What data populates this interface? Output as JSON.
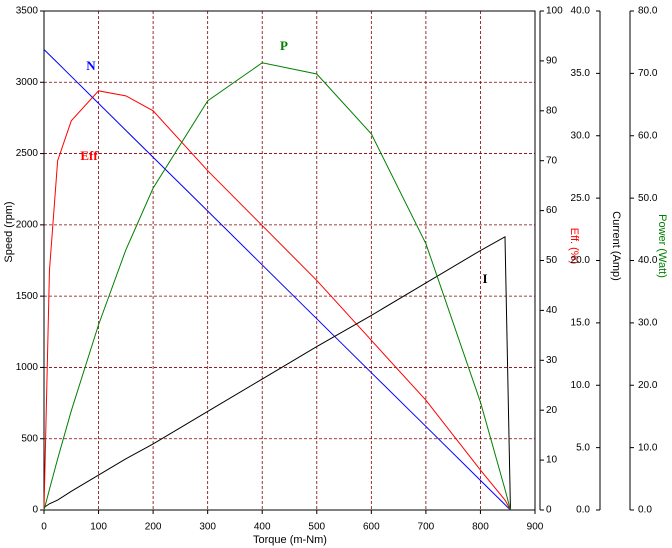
{
  "chart_data": {
    "type": "line",
    "xlabel": "Torque (m-Nm)",
    "ylabel": "Speed (rpm)",
    "y2label": "Eff. (%)",
    "y3label": "Current (Amp)",
    "y4label": "Power (Watt)",
    "x": [
      0,
      10,
      25,
      50,
      100,
      150,
      200,
      300,
      400,
      500,
      600,
      700,
      800,
      845,
      855
    ],
    "xlim": [
      0,
      900
    ],
    "xticks": [
      0,
      100,
      200,
      300,
      400,
      500,
      600,
      700,
      800,
      900
    ],
    "ylim": [
      0,
      3500
    ],
    "yticks": [
      0,
      500,
      1000,
      1500,
      2000,
      2500,
      3000,
      3500
    ],
    "y2lim": [
      0,
      100
    ],
    "y2ticks": [
      0,
      10,
      20,
      30,
      40,
      50,
      60,
      70,
      80,
      90,
      100
    ],
    "y3lim": [
      0,
      40
    ],
    "y3ticks": [
      {
        "value": 0,
        "label": "0.0"
      },
      {
        "value": 5,
        "label": "5.0"
      },
      {
        "value": 10,
        "label": "10.0"
      },
      {
        "value": 15,
        "label": "15.0"
      },
      {
        "value": 20,
        "label": "20.0"
      },
      {
        "value": 25,
        "label": "25.0"
      },
      {
        "value": 30,
        "label": "30.0"
      },
      {
        "value": 35,
        "label": "35.0"
      },
      {
        "value": 40,
        "label": "40.0"
      }
    ],
    "y4lim": [
      0,
      80
    ],
    "y4ticks": [
      {
        "value": 0,
        "label": "0.0"
      },
      {
        "value": 10,
        "label": "10.0"
      },
      {
        "value": 20,
        "label": "20.0"
      },
      {
        "value": 30,
        "label": "30.0"
      },
      {
        "value": 40,
        "label": "40.0"
      },
      {
        "value": 50,
        "label": "50.0"
      },
      {
        "value": 60,
        "label": "60.0"
      },
      {
        "value": 70,
        "label": "70.0"
      },
      {
        "value": 80,
        "label": "80.0"
      }
    ],
    "grid": true,
    "series": [
      {
        "name": "N",
        "color": "#0000ff",
        "axis": "y",
        "values": [
          3230,
          3192,
          3136,
          3041,
          2852,
          2663,
          2474,
          2097,
          1719,
          1341,
          963,
          586,
          208,
          38,
          0
        ]
      },
      {
        "name": "Eff",
        "color": "#ff0000",
        "axis": "y2",
        "values": [
          0,
          48,
          70,
          78,
          84,
          83,
          80,
          68,
          57,
          46,
          34,
          22,
          8,
          2,
          0
        ]
      },
      {
        "name": "I",
        "color": "#000000",
        "axis": "y3",
        "values": [
          0.2,
          0.5,
          0.8,
          1.5,
          2.8,
          4.1,
          5.3,
          7.9,
          10.5,
          13.1,
          15.6,
          18.2,
          20.8,
          21.9,
          0
        ]
      },
      {
        "name": "P",
        "color": "#008000",
        "axis": "y4",
        "values": [
          0,
          3.3,
          8.2,
          15.9,
          29.7,
          41.7,
          51.6,
          65.6,
          71.7,
          69.9,
          60.3,
          42.7,
          17.3,
          3.3,
          0
        ]
      }
    ]
  }
}
